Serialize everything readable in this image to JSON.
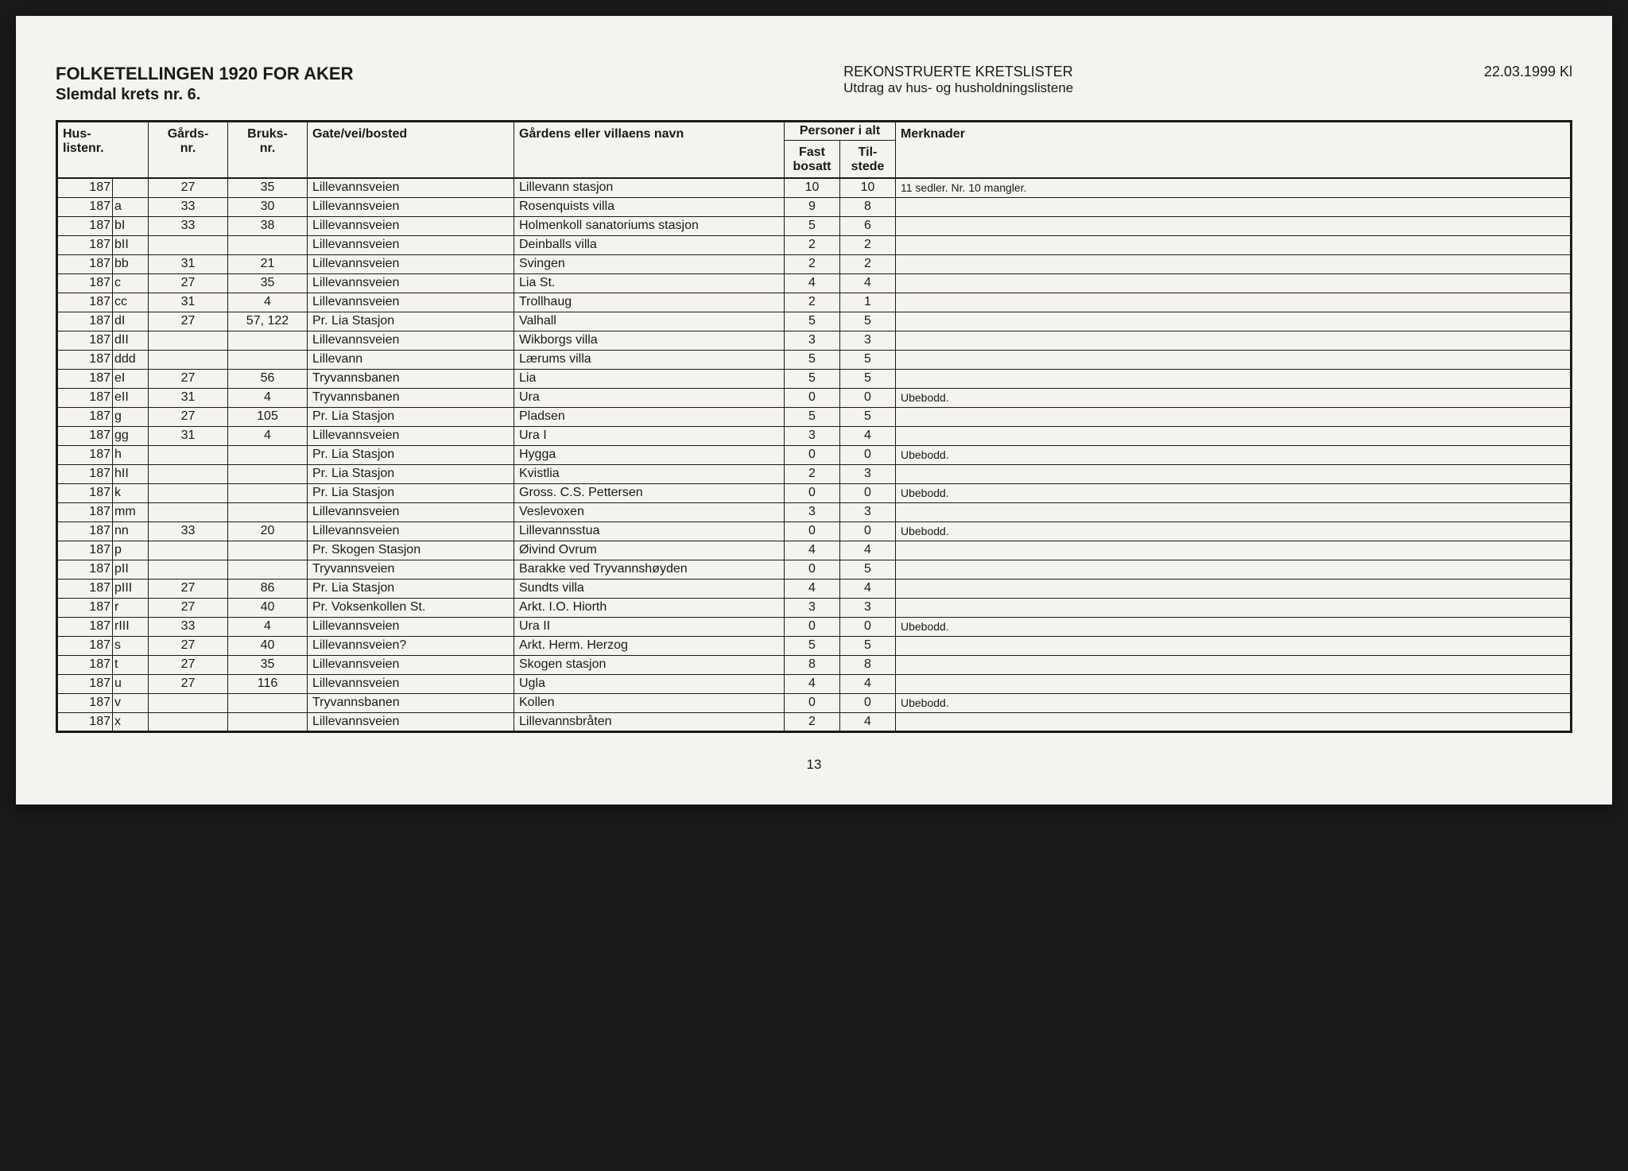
{
  "header": {
    "title_main": "FOLKETELLINGEN 1920 FOR AKER",
    "title_sub": "Slemdal krets nr. 6.",
    "center_title": "REKONSTRUERTE KRETSLISTER",
    "center_sub": "Utdrag av hus- og husholdningslistene",
    "date": "22.03.1999 Kl"
  },
  "columns": {
    "husliste": "Hus-\nlistenr.",
    "gards": "Gårds-\nnr.",
    "bruks": "Bruks-\nnr.",
    "gate": "Gate/vei/bosted",
    "gardnavn": "Gårdens eller villaens navn",
    "personer_group": "Personer i alt",
    "fast": "Fast\nbosatt",
    "til": "Til-\nstede",
    "merk": "Merknader"
  },
  "rows": [
    {
      "nr": "187",
      "suf": "",
      "gards": "27",
      "bruks": "35",
      "gate": "Lillevannsveien",
      "navn": "Lillevann stasjon",
      "fast": "10",
      "til": "10",
      "merk": "11 sedler. Nr. 10 mangler."
    },
    {
      "nr": "187",
      "suf": "a",
      "gards": "33",
      "bruks": "30",
      "gate": "Lillevannsveien",
      "navn": "Rosenquists villa",
      "fast": "9",
      "til": "8",
      "merk": ""
    },
    {
      "nr": "187",
      "suf": "bI",
      "gards": "33",
      "bruks": "38",
      "gate": "Lillevannsveien",
      "navn": "Holmenkoll sanatoriums stasjon",
      "fast": "5",
      "til": "6",
      "merk": ""
    },
    {
      "nr": "187",
      "suf": "bII",
      "gards": "",
      "bruks": "",
      "gate": "Lillevannsveien",
      "navn": "Deinballs villa",
      "fast": "2",
      "til": "2",
      "merk": ""
    },
    {
      "nr": "187",
      "suf": "bb",
      "gards": "31",
      "bruks": "21",
      "gate": "Lillevannsveien",
      "navn": "Svingen",
      "fast": "2",
      "til": "2",
      "merk": ""
    },
    {
      "nr": "187",
      "suf": "c",
      "gards": "27",
      "bruks": "35",
      "gate": "Lillevannsveien",
      "navn": "Lia St.",
      "fast": "4",
      "til": "4",
      "merk": ""
    },
    {
      "nr": "187",
      "suf": "cc",
      "gards": "31",
      "bruks": "4",
      "gate": "Lillevannsveien",
      "navn": "Trollhaug",
      "fast": "2",
      "til": "1",
      "merk": ""
    },
    {
      "nr": "187",
      "suf": "dI",
      "gards": "27",
      "bruks": "57, 122",
      "gate": "Pr. Lia Stasjon",
      "navn": "Valhall",
      "fast": "5",
      "til": "5",
      "merk": ""
    },
    {
      "nr": "187",
      "suf": "dII",
      "gards": "",
      "bruks": "",
      "gate": "Lillevannsveien",
      "navn": "Wikborgs villa",
      "fast": "3",
      "til": "3",
      "merk": ""
    },
    {
      "nr": "187",
      "suf": "ddd",
      "gards": "",
      "bruks": "",
      "gate": "Lillevann",
      "navn": "Lærums villa",
      "fast": "5",
      "til": "5",
      "merk": ""
    },
    {
      "nr": "187",
      "suf": "eI",
      "gards": "27",
      "bruks": "56",
      "gate": "Tryvannsbanen",
      "navn": "Lia",
      "fast": "5",
      "til": "5",
      "merk": ""
    },
    {
      "nr": "187",
      "suf": "eII",
      "gards": "31",
      "bruks": "4",
      "gate": "Tryvannsbanen",
      "navn": "Ura",
      "fast": "0",
      "til": "0",
      "merk": "Ubebodd."
    },
    {
      "nr": "187",
      "suf": "g",
      "gards": "27",
      "bruks": "105",
      "gate": "Pr. Lia Stasjon",
      "navn": "Pladsen",
      "fast": "5",
      "til": "5",
      "merk": ""
    },
    {
      "nr": "187",
      "suf": "gg",
      "gards": "31",
      "bruks": "4",
      "gate": "Lillevannsveien",
      "navn": "Ura I",
      "fast": "3",
      "til": "4",
      "merk": ""
    },
    {
      "nr": "187",
      "suf": "h",
      "gards": "",
      "bruks": "",
      "gate": "Pr. Lia Stasjon",
      "navn": "Hygga",
      "fast": "0",
      "til": "0",
      "merk": "Ubebodd."
    },
    {
      "nr": "187",
      "suf": "hII",
      "gards": "",
      "bruks": "",
      "gate": "Pr. Lia Stasjon",
      "navn": "Kvistlia",
      "fast": "2",
      "til": "3",
      "merk": ""
    },
    {
      "nr": "187",
      "suf": "k",
      "gards": "",
      "bruks": "",
      "gate": "Pr. Lia Stasjon",
      "navn": "Gross. C.S. Pettersen",
      "fast": "0",
      "til": "0",
      "merk": "Ubebodd."
    },
    {
      "nr": "187",
      "suf": "mm",
      "gards": "",
      "bruks": "",
      "gate": "Lillevannsveien",
      "navn": "Veslevoxen",
      "fast": "3",
      "til": "3",
      "merk": ""
    },
    {
      "nr": "187",
      "suf": "nn",
      "gards": "33",
      "bruks": "20",
      "gate": "Lillevannsveien",
      "navn": "Lillevannsstua",
      "fast": "0",
      "til": "0",
      "merk": "Ubebodd."
    },
    {
      "nr": "187",
      "suf": "p",
      "gards": "",
      "bruks": "",
      "gate": "Pr. Skogen Stasjon",
      "navn": "Øivind Ovrum",
      "fast": "4",
      "til": "4",
      "merk": ""
    },
    {
      "nr": "187",
      "suf": "pII",
      "gards": "",
      "bruks": "",
      "gate": "Tryvannsveien",
      "navn": "Barakke ved Tryvannshøyden",
      "fast": "0",
      "til": "5",
      "merk": ""
    },
    {
      "nr": "187",
      "suf": "pIII",
      "gards": "27",
      "bruks": "86",
      "gate": "Pr. Lia Stasjon",
      "navn": "Sundts villa",
      "fast": "4",
      "til": "4",
      "merk": ""
    },
    {
      "nr": "187",
      "suf": "r",
      "gards": "27",
      "bruks": "40",
      "gate": "Pr. Voksenkollen St.",
      "navn": "Arkt. I.O. Hiorth",
      "fast": "3",
      "til": "3",
      "merk": ""
    },
    {
      "nr": "187",
      "suf": "rIII",
      "gards": "33",
      "bruks": "4",
      "gate": "Lillevannsveien",
      "navn": "Ura II",
      "fast": "0",
      "til": "0",
      "merk": "Ubebodd."
    },
    {
      "nr": "187",
      "suf": "s",
      "gards": "27",
      "bruks": "40",
      "gate": "Lillevannsveien?",
      "navn": "Arkt. Herm. Herzog",
      "fast": "5",
      "til": "5",
      "merk": ""
    },
    {
      "nr": "187",
      "suf": "t",
      "gards": "27",
      "bruks": "35",
      "gate": "Lillevannsveien",
      "navn": "Skogen stasjon",
      "fast": "8",
      "til": "8",
      "merk": ""
    },
    {
      "nr": "187",
      "suf": "u",
      "gards": "27",
      "bruks": "116",
      "gate": "Lillevannsveien",
      "navn": "Ugla",
      "fast": "4",
      "til": "4",
      "merk": ""
    },
    {
      "nr": "187",
      "suf": "v",
      "gards": "",
      "bruks": "",
      "gate": "Tryvannsbanen",
      "navn": "Kollen",
      "fast": "0",
      "til": "0",
      "merk": "Ubebodd."
    },
    {
      "nr": "187",
      "suf": "x",
      "gards": "",
      "bruks": "",
      "gate": "Lillevannsveien",
      "navn": "Lillevannsbråten",
      "fast": "2",
      "til": "4",
      "merk": ""
    }
  ],
  "page_number": "13",
  "styling": {
    "background_color": "#f5f3ed",
    "text_color": "#1a1a1a",
    "border_color": "#1a1a1a",
    "font_family": "Arial",
    "title_fontsize": 22,
    "body_fontsize": 16,
    "outer_border_width": 3,
    "inner_border_width": 1
  }
}
